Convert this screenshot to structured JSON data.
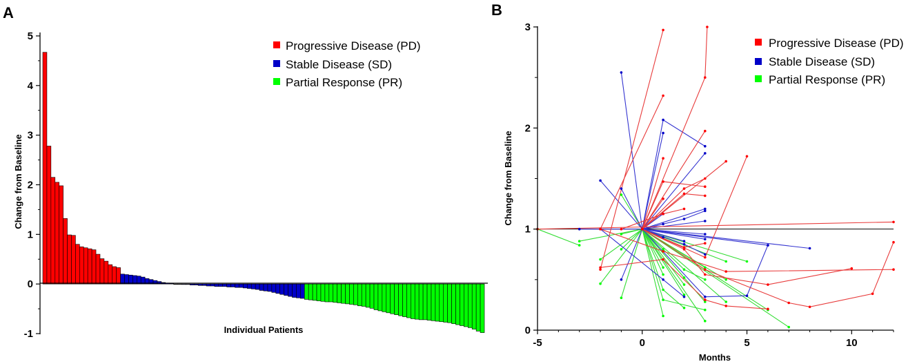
{
  "colors": {
    "pd": "#ff0000",
    "sd": "#0000c8",
    "pr": "#00ff00",
    "pd_line": "#e83a3a",
    "sd_line": "#3333d0",
    "pr_line": "#33dd33"
  },
  "chart_data": [
    {
      "panel": "A",
      "type": "bar",
      "title": "",
      "xlabel": "Individual Patients",
      "ylabel": "Change from Baseline",
      "ylim": [
        -1,
        5
      ],
      "yticks": [
        "-1",
        "0",
        "1",
        "2",
        "3",
        "4",
        "5"
      ],
      "legend": [
        {
          "label": "Progressive Disease (PD)",
          "key": "pd"
        },
        {
          "label": "Stable Disease (SD)",
          "key": "sd"
        },
        {
          "label": "Partial Response (PR)",
          "key": "pr"
        }
      ],
      "series": [
        {
          "name": "Progressive Disease (PD)",
          "key": "pd",
          "values": [
            4.67,
            2.78,
            2.15,
            2.05,
            1.98,
            1.32,
            0.99,
            0.98,
            0.8,
            0.75,
            0.73,
            0.71,
            0.69,
            0.6,
            0.51,
            0.46,
            0.39,
            0.35,
            0.33
          ]
        },
        {
          "name": "Stable Disease (SD)",
          "key": "sd",
          "values": [
            0.2,
            0.19,
            0.18,
            0.17,
            0.16,
            0.14,
            0.11,
            0.09,
            0.07,
            0.05,
            0.03,
            0.02,
            0.01,
            0.0,
            0.0,
            -0.01,
            -0.01,
            -0.02,
            -0.02,
            -0.03,
            -0.03,
            -0.04,
            -0.04,
            -0.05,
            -0.05,
            -0.05,
            -0.06,
            -0.06,
            -0.07,
            -0.07,
            -0.08,
            -0.09,
            -0.1,
            -0.11,
            -0.13,
            -0.14,
            -0.15,
            -0.17,
            -0.19,
            -0.21,
            -0.23,
            -0.25,
            -0.27,
            -0.28,
            -0.29
          ]
        },
        {
          "name": "Partial Response (PR)",
          "key": "pr",
          "values": [
            -0.31,
            -0.32,
            -0.33,
            -0.34,
            -0.35,
            -0.36,
            -0.36,
            -0.37,
            -0.38,
            -0.39,
            -0.4,
            -0.41,
            -0.42,
            -0.44,
            -0.45,
            -0.47,
            -0.49,
            -0.52,
            -0.54,
            -0.56,
            -0.58,
            -0.6,
            -0.62,
            -0.64,
            -0.66,
            -0.68,
            -0.7,
            -0.71,
            -0.72,
            -0.72,
            -0.73,
            -0.74,
            -0.75,
            -0.76,
            -0.77,
            -0.78,
            -0.8,
            -0.82,
            -0.84,
            -0.86,
            -0.88,
            -0.91,
            -0.95,
            -0.98
          ]
        }
      ]
    },
    {
      "panel": "B",
      "type": "line",
      "title": "",
      "xlabel": "Months",
      "ylabel": "Change from Baseline",
      "xlim": [
        -5,
        12
      ],
      "ylim": [
        0,
        3
      ],
      "xticks": [
        "-5",
        "0",
        "5",
        "10"
      ],
      "yticks": [
        "0",
        "1",
        "2",
        "3"
      ],
      "reference_line": 1,
      "legend": [
        {
          "label": "Progressive Disease (PD)",
          "key": "pd"
        },
        {
          "label": "Stable Disease (SD)",
          "key": "sd"
        },
        {
          "label": "Partial Response (PR)",
          "key": "pr"
        }
      ],
      "series": [
        {
          "name": "Progressive Disease (PD)",
          "key": "pd",
          "trajectories": [
            [
              [
                -2,
                0.6
              ],
              [
                1,
                2.97
              ]
            ],
            [
              [
                0,
                1.0
              ],
              [
                3,
                2.5
              ],
              [
                3.1,
                3.0
              ]
            ],
            [
              [
                -2,
                1.0
              ],
              [
                1,
                2.32
              ]
            ],
            [
              [
                0,
                1.0
              ],
              [
                3,
                1.97
              ]
            ],
            [
              [
                0,
                1.0
              ],
              [
                1,
                1.7
              ]
            ],
            [
              [
                0,
                1.0
              ],
              [
                4,
                1.67
              ]
            ],
            [
              [
                0,
                1.0
              ],
              [
                2,
                1.4
              ],
              [
                3,
                1.5
              ]
            ],
            [
              [
                0,
                1.0
              ],
              [
                1,
                1.47
              ],
              [
                3,
                1.42
              ]
            ],
            [
              [
                0,
                1.0
              ],
              [
                2,
                1.35
              ],
              [
                3,
                1.33
              ]
            ],
            [
              [
                0,
                1.0
              ],
              [
                1,
                1.3
              ]
            ],
            [
              [
                0,
                1.0
              ],
              [
                3,
                0.72
              ],
              [
                5,
                1.72
              ]
            ],
            [
              [
                -5,
                1.0
              ],
              [
                12,
                1.07
              ]
            ],
            [
              [
                -2,
                1.0
              ],
              [
                1,
                0.78
              ],
              [
                4,
                0.58
              ],
              [
                12,
                0.6
              ]
            ],
            [
              [
                -2,
                0.62
              ],
              [
                1,
                0.7
              ],
              [
                3,
                0.3
              ],
              [
                4,
                0.24
              ],
              [
                6,
                0.21
              ]
            ],
            [
              [
                0,
                1.0
              ],
              [
                2,
                0.8
              ],
              [
                3,
                0.55
              ],
              [
                6,
                0.45
              ],
              [
                10,
                0.61
              ]
            ],
            [
              [
                0,
                1.0
              ],
              [
                3,
                0.6
              ],
              [
                7,
                0.27
              ],
              [
                8,
                0.23
              ],
              [
                11,
                0.36
              ],
              [
                12,
                0.87
              ]
            ],
            [
              [
                0,
                1.0
              ],
              [
                2,
                0.82
              ],
              [
                3,
                0.86
              ]
            ],
            [
              [
                -1,
                1.0
              ],
              [
                1,
                1.15
              ],
              [
                2,
                1.2
              ]
            ]
          ]
        },
        {
          "name": "Stable Disease (SD)",
          "key": "sd",
          "trajectories": [
            [
              [
                -1,
                2.55
              ],
              [
                0,
                1.0
              ],
              [
                1,
                2.08
              ],
              [
                3,
                1.82
              ]
            ],
            [
              [
                0,
                1.0
              ],
              [
                3,
                1.75
              ]
            ],
            [
              [
                -2,
                1.48
              ],
              [
                0,
                1.0
              ],
              [
                1,
                1.15
              ]
            ],
            [
              [
                -1,
                1.4
              ],
              [
                0,
                1.0
              ],
              [
                3,
                1.2
              ]
            ],
            [
              [
                -3,
                1.0
              ],
              [
                0,
                1.0
              ],
              [
                1,
                1.95
              ]
            ],
            [
              [
                0,
                1.0
              ],
              [
                2,
                1.1
              ],
              [
                3,
                1.18
              ]
            ],
            [
              [
                0,
                1.0
              ],
              [
                6,
                0.84
              ]
            ],
            [
              [
                0,
                1.0
              ],
              [
                8,
                0.81
              ]
            ],
            [
              [
                0,
                1.0
              ],
              [
                3,
                0.33
              ],
              [
                5,
                0.34
              ],
              [
                6,
                0.84
              ]
            ],
            [
              [
                -1,
                0.5
              ],
              [
                0,
                1.0
              ],
              [
                3,
                0.95
              ]
            ],
            [
              [
                0,
                1.0
              ],
              [
                2,
                0.85
              ],
              [
                3,
                0.75
              ]
            ],
            [
              [
                0,
                1.0
              ],
              [
                1,
                0.92
              ]
            ],
            [
              [
                0,
                1.0
              ],
              [
                3,
                0.9
              ]
            ],
            [
              [
                0,
                1.0
              ],
              [
                1,
                1.05
              ]
            ],
            [
              [
                -2,
                1.0
              ],
              [
                1,
                0.5
              ],
              [
                2,
                0.33
              ]
            ],
            [
              [
                0,
                1.0
              ],
              [
                2,
                0.88
              ]
            ],
            [
              [
                0,
                1.0
              ],
              [
                3,
                1.08
              ]
            ]
          ]
        },
        {
          "name": "Partial Response (PR)",
          "key": "pr",
          "trajectories": [
            [
              [
                -5,
                1.0
              ],
              [
                -3,
                0.84
              ]
            ],
            [
              [
                -2,
                0.46
              ],
              [
                0,
                1.0
              ],
              [
                1,
                0.8
              ]
            ],
            [
              [
                -1,
                1.34
              ],
              [
                0,
                1.0
              ],
              [
                2,
                0.52
              ]
            ],
            [
              [
                0,
                1.0
              ],
              [
                7,
                0.03
              ]
            ],
            [
              [
                0,
                1.0
              ],
              [
                6,
                0.2
              ]
            ],
            [
              [
                0,
                1.0
              ],
              [
                3,
                0.09
              ]
            ],
            [
              [
                0,
                1.0
              ],
              [
                1,
                0.14
              ]
            ],
            [
              [
                0,
                1.0
              ],
              [
                4,
                0.5
              ]
            ],
            [
              [
                0,
                1.0
              ],
              [
                5,
                0.68
              ]
            ],
            [
              [
                -1,
                0.95
              ],
              [
                0,
                1.0
              ],
              [
                2,
                0.35
              ]
            ],
            [
              [
                0,
                1.0
              ],
              [
                3,
                0.28
              ]
            ],
            [
              [
                0,
                1.0
              ],
              [
                1,
                0.4
              ],
              [
                2,
                0.22
              ]
            ],
            [
              [
                -3,
                0.88
              ],
              [
                0,
                1.0
              ],
              [
                4,
                0.28
              ]
            ],
            [
              [
                0,
                1.0
              ],
              [
                2,
                0.6
              ],
              [
                3,
                0.5
              ]
            ],
            [
              [
                0,
                1.0
              ],
              [
                1,
                0.3
              ],
              [
                3,
                0.2
              ]
            ],
            [
              [
                0,
                1.0
              ],
              [
                4,
                0.68
              ]
            ],
            [
              [
                -1,
                0.8
              ],
              [
                0,
                1.0
              ],
              [
                1,
                0.62
              ]
            ],
            [
              [
                0,
                1.0
              ],
              [
                2,
                0.45
              ]
            ],
            [
              [
                0,
                1.0
              ],
              [
                3,
                0.62
              ]
            ],
            [
              [
                0,
                1.0
              ],
              [
                1,
                0.55
              ]
            ],
            [
              [
                -2,
                0.7
              ],
              [
                0,
                1.0
              ]
            ],
            [
              [
                0,
                1.0
              ],
              [
                -1,
                0.32
              ]
            ]
          ]
        }
      ]
    }
  ]
}
